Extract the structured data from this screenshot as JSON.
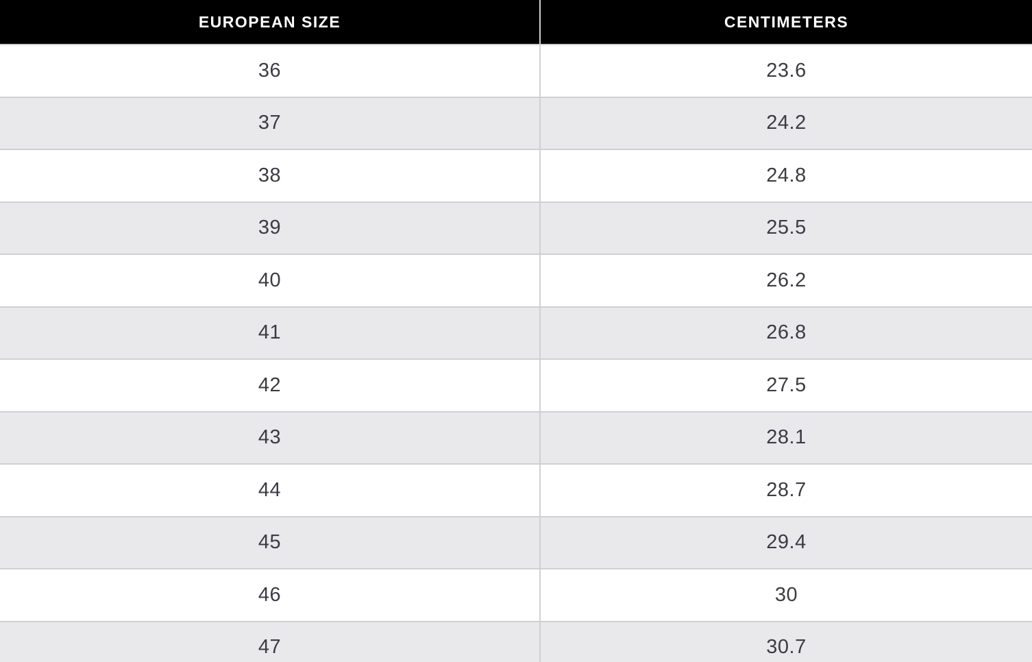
{
  "table": {
    "title": "shoe-size-conversion",
    "columns": [
      {
        "label": "EUROPEAN SIZE"
      },
      {
        "label": "CENTIMETERS"
      }
    ],
    "rows": [
      {
        "eu": "36",
        "cm": "23.6"
      },
      {
        "eu": "37",
        "cm": "24.2"
      },
      {
        "eu": "38",
        "cm": "24.8"
      },
      {
        "eu": "39",
        "cm": "25.5"
      },
      {
        "eu": "40",
        "cm": "26.2"
      },
      {
        "eu": "41",
        "cm": "26.8"
      },
      {
        "eu": "42",
        "cm": "27.5"
      },
      {
        "eu": "43",
        "cm": "28.1"
      },
      {
        "eu": "44",
        "cm": "28.7"
      },
      {
        "eu": "45",
        "cm": "29.4"
      },
      {
        "eu": "46",
        "cm": "30"
      },
      {
        "eu": "47",
        "cm": "30.7"
      }
    ],
    "colors": {
      "header_bg": "#000000",
      "header_text": "#ffffff",
      "row_bg": "#ffffff",
      "row_alt_bg": "#e9e8ea",
      "border": "#d0cfd2",
      "cell_text": "#3b3b42"
    }
  }
}
